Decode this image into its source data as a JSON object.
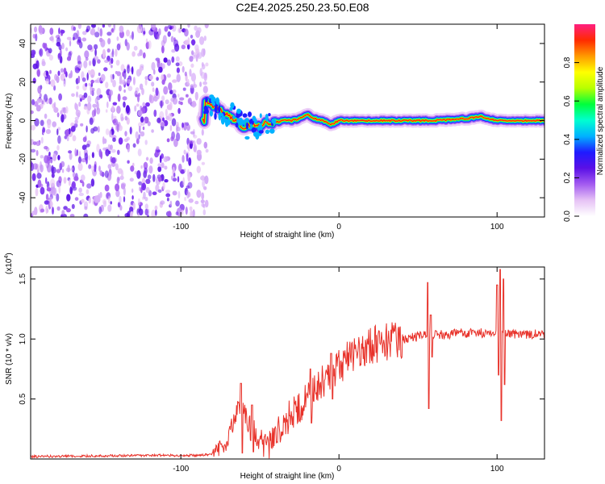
{
  "title": "C2E4.2025.250.23.50.E08",
  "chart_data": [
    {
      "type": "heatmap",
      "title": "C2E4.2025.250.23.50.E08",
      "xlabel": "Height of straight line (km)",
      "ylabel": "Frequency (Hz)",
      "xlim": [
        -195,
        130
      ],
      "ylim": [
        -50,
        50
      ],
      "x_ticks": [
        -100,
        0,
        100
      ],
      "x_tick_labels": [
        "-100",
        "0",
        "100"
      ],
      "y_ticks": [
        -40,
        -20,
        0,
        20,
        40
      ],
      "y_tick_labels": [
        "-40",
        "-20",
        "0",
        "20",
        "40"
      ],
      "noise_region_x": [
        -195,
        -87
      ],
      "ridge_frequency_hz": [
        [
          -85,
          10
        ],
        [
          -80,
          8
        ],
        [
          -75,
          5
        ],
        [
          -70,
          3
        ],
        [
          -65,
          -1
        ],
        [
          -60,
          -3
        ],
        [
          -55,
          -2
        ],
        [
          -50,
          -3
        ],
        [
          -45,
          -1
        ],
        [
          -40,
          -1
        ],
        [
          -35,
          0
        ],
        [
          -30,
          0
        ],
        [
          -25,
          1
        ],
        [
          -20,
          3
        ],
        [
          -15,
          1
        ],
        [
          -10,
          0
        ],
        [
          -5,
          -2
        ],
        [
          0,
          0
        ],
        [
          10,
          0
        ],
        [
          20,
          0
        ],
        [
          40,
          0
        ],
        [
          60,
          0
        ],
        [
          80,
          1
        ],
        [
          90,
          2
        ],
        [
          100,
          0
        ],
        [
          110,
          0
        ],
        [
          130,
          0
        ]
      ],
      "colorbar": {
        "label": "Normalized spectral amplitude",
        "min": 0,
        "max": 1,
        "ticks": [
          0.0,
          0.2,
          0.4,
          0.6,
          0.8
        ],
        "tick_labels": [
          "0.0",
          "0.2",
          "0.4",
          "0.6",
          "0.8"
        ],
        "colors": [
          "#ffffff",
          "#e6c2f5",
          "#a35bf0",
          "#5a10e6",
          "#1f1bff",
          "#00b2ff",
          "#00ffd0",
          "#00ff3c",
          "#b8ff00",
          "#ffff00",
          "#ff9a00",
          "#ff2a00",
          "#ff1f80"
        ]
      }
    },
    {
      "type": "line",
      "xlabel": "Height of straight line (km)",
      "ylabel": "SNR (10 * v/v)",
      "y_multiplier": "(x10",
      "y_multiplier_exp": "4",
      "xlim": [
        -195,
        130
      ],
      "ylim": [
        0,
        1.6
      ],
      "x_ticks": [
        -100,
        0,
        100
      ],
      "x_tick_labels": [
        "-100",
        "0",
        "100"
      ],
      "y_ticks": [
        0.5,
        1.0,
        1.5
      ],
      "y_tick_labels": [
        "0.5",
        "1.0",
        "1.5"
      ],
      "series": [
        {
          "name": "SNR",
          "color": "#e8322a",
          "points": [
            [
              -195,
              0.02
            ],
            [
              -160,
              0.025
            ],
            [
              -120,
              0.03
            ],
            [
              -90,
              0.03
            ],
            [
              -80,
              0.04
            ],
            [
              -72,
              0.12
            ],
            [
              -67,
              0.3
            ],
            [
              -63,
              0.45
            ],
            [
              -60,
              0.38
            ],
            [
              -56,
              0.25
            ],
            [
              -52,
              0.2
            ],
            [
              -48,
              0.12
            ],
            [
              -45,
              0.1
            ],
            [
              -40,
              0.2
            ],
            [
              -35,
              0.3
            ],
            [
              -30,
              0.38
            ],
            [
              -25,
              0.42
            ],
            [
              -20,
              0.5
            ],
            [
              -15,
              0.6
            ],
            [
              -10,
              0.65
            ],
            [
              -5,
              0.72
            ],
            [
              0,
              0.78
            ],
            [
              5,
              0.82
            ],
            [
              10,
              0.88
            ],
            [
              15,
              0.92
            ],
            [
              20,
              0.95
            ],
            [
              30,
              0.98
            ],
            [
              40,
              1.0
            ],
            [
              50,
              1.02
            ],
            [
              55,
              1.03
            ],
            [
              60,
              1.03
            ],
            [
              70,
              1.04
            ],
            [
              80,
              1.05
            ],
            [
              90,
              1.05
            ],
            [
              100,
              1.06
            ],
            [
              105,
              1.05
            ],
            [
              110,
              1.04
            ],
            [
              120,
              1.04
            ],
            [
              130,
              1.04
            ]
          ],
          "spikes": [
            [
              -62,
              0.63,
              0.05
            ],
            [
              -55,
              0.45,
              0.06
            ],
            [
              -18,
              0.75,
              0.3
            ],
            [
              -5,
              0.88,
              0.5
            ],
            [
              56,
              1.47,
              0.42
            ],
            [
              58,
              1.2,
              0.85
            ],
            [
              100,
              1.45,
              0.7
            ],
            [
              102,
              1.58,
              0.32
            ],
            [
              104,
              1.5,
              0.62
            ]
          ]
        }
      ]
    }
  ]
}
